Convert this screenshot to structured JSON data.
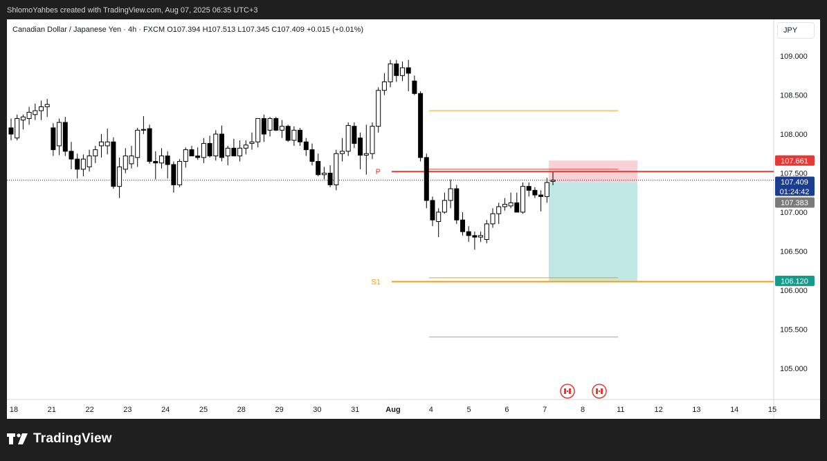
{
  "header": {
    "attribution": "ShlomoYahbes created with TradingView.com, Aug 07, 2025 06:35 UTC+3"
  },
  "legend": {
    "symbol": "Canadian Dollar / Japanese Yen · 4h · FXCM",
    "open": "O107.394",
    "high": "H107.513",
    "low": "L107.345",
    "close": "C107.409",
    "change": "+0.015 (+0.01%)"
  },
  "currency_button": "JPY",
  "brand": {
    "name": "TradingView"
  },
  "chart_data": {
    "type": "candlestick",
    "title": "Canadian Dollar / Japanese Yen · 4h · FXCM",
    "ylim": [
      104.6,
      109.47
    ],
    "y_ticks": [
      "109.000",
      "108.500",
      "108.000",
      "107.500",
      "107.000",
      "106.500",
      "106.000",
      "105.500",
      "105.000"
    ],
    "x_ticks": [
      "18",
      "21",
      "22",
      "23",
      "24",
      "25",
      "28",
      "29",
      "30",
      "31",
      "Aug",
      "4",
      "5",
      "6",
      "7",
      "8",
      "11",
      "12",
      "13",
      "14",
      "15"
    ],
    "colors": {
      "up_candle": "#ffffff",
      "down_candle": "#000000",
      "pivot_line": "#e53935",
      "support_line": "#f39c12",
      "stop_zone": "#f8c9cc",
      "target_zone": "#b9e4e0",
      "current_price_badge": "#1b3d8f",
      "entry_badge": "#7a7a7a",
      "target_badge": "#169a89",
      "stop_badge": "#e53935"
    },
    "candles": [
      {
        "o": 108.08,
        "h": 108.2,
        "l": 107.92,
        "c": 108.0
      },
      {
        "o": 107.95,
        "h": 108.25,
        "l": 107.92,
        "c": 108.2
      },
      {
        "o": 108.18,
        "h": 108.25,
        "l": 108.06,
        "c": 108.22
      },
      {
        "o": 108.2,
        "h": 108.35,
        "l": 108.12,
        "c": 108.28
      },
      {
        "o": 108.25,
        "h": 108.39,
        "l": 108.18,
        "c": 108.3
      },
      {
        "o": 108.3,
        "h": 108.43,
        "l": 108.18,
        "c": 108.35
      },
      {
        "o": 108.35,
        "h": 108.45,
        "l": 108.22,
        "c": 108.38
      },
      {
        "o": 108.08,
        "h": 108.14,
        "l": 107.72,
        "c": 107.8
      },
      {
        "o": 107.85,
        "h": 108.2,
        "l": 107.73,
        "c": 108.15
      },
      {
        "o": 108.15,
        "h": 108.22,
        "l": 107.72,
        "c": 107.78
      },
      {
        "o": 107.78,
        "h": 107.9,
        "l": 107.55,
        "c": 107.68
      },
      {
        "o": 107.68,
        "h": 107.75,
        "l": 107.43,
        "c": 107.55
      },
      {
        "o": 107.55,
        "h": 107.74,
        "l": 107.46,
        "c": 107.68
      },
      {
        "o": 107.58,
        "h": 107.8,
        "l": 107.52,
        "c": 107.72
      },
      {
        "o": 107.72,
        "h": 107.85,
        "l": 107.63,
        "c": 107.8
      },
      {
        "o": 107.85,
        "h": 108.0,
        "l": 107.7,
        "c": 107.9
      },
      {
        "o": 107.85,
        "h": 108.07,
        "l": 107.74,
        "c": 107.9
      },
      {
        "o": 107.9,
        "h": 107.96,
        "l": 107.3,
        "c": 107.33
      },
      {
        "o": 107.33,
        "h": 107.7,
        "l": 107.18,
        "c": 107.58
      },
      {
        "o": 107.55,
        "h": 107.82,
        "l": 107.5,
        "c": 107.72
      },
      {
        "o": 107.62,
        "h": 107.85,
        "l": 107.56,
        "c": 107.72
      },
      {
        "o": 107.7,
        "h": 108.08,
        "l": 107.58,
        "c": 108.05
      },
      {
        "o": 108.05,
        "h": 108.23,
        "l": 108.0,
        "c": 108.06
      },
      {
        "o": 108.07,
        "h": 108.12,
        "l": 107.62,
        "c": 107.65
      },
      {
        "o": 107.65,
        "h": 107.78,
        "l": 107.42,
        "c": 107.63
      },
      {
        "o": 107.63,
        "h": 107.82,
        "l": 107.56,
        "c": 107.72
      },
      {
        "o": 107.72,
        "h": 107.78,
        "l": 107.43,
        "c": 107.61
      },
      {
        "o": 107.61,
        "h": 107.65,
        "l": 107.25,
        "c": 107.35
      },
      {
        "o": 107.35,
        "h": 107.68,
        "l": 107.32,
        "c": 107.65
      },
      {
        "o": 107.65,
        "h": 107.83,
        "l": 107.57,
        "c": 107.8
      },
      {
        "o": 107.8,
        "h": 107.85,
        "l": 107.72,
        "c": 107.72
      },
      {
        "o": 107.72,
        "h": 107.83,
        "l": 107.67,
        "c": 107.7
      },
      {
        "o": 107.7,
        "h": 107.95,
        "l": 107.63,
        "c": 107.88
      },
      {
        "o": 107.88,
        "h": 107.98,
        "l": 107.7,
        "c": 107.72
      },
      {
        "o": 107.72,
        "h": 108.05,
        "l": 107.66,
        "c": 108.0
      },
      {
        "o": 108.0,
        "h": 108.11,
        "l": 107.65,
        "c": 107.7
      },
      {
        "o": 107.72,
        "h": 107.85,
        "l": 107.6,
        "c": 107.82
      },
      {
        "o": 107.82,
        "h": 107.94,
        "l": 107.72,
        "c": 107.72
      },
      {
        "o": 107.72,
        "h": 107.92,
        "l": 107.65,
        "c": 107.82
      },
      {
        "o": 107.82,
        "h": 107.92,
        "l": 107.74,
        "c": 107.86
      },
      {
        "o": 107.88,
        "h": 108.02,
        "l": 107.8,
        "c": 107.9
      },
      {
        "o": 107.9,
        "h": 108.2,
        "l": 107.83,
        "c": 108.2
      },
      {
        "o": 108.2,
        "h": 108.25,
        "l": 107.9,
        "c": 108.0
      },
      {
        "o": 108.05,
        "h": 108.22,
        "l": 107.97,
        "c": 108.2
      },
      {
        "o": 108.2,
        "h": 108.22,
        "l": 108.04,
        "c": 108.05
      },
      {
        "o": 108.05,
        "h": 108.18,
        "l": 107.95,
        "c": 108.1
      },
      {
        "o": 108.1,
        "h": 108.12,
        "l": 107.9,
        "c": 107.92
      },
      {
        "o": 107.92,
        "h": 108.1,
        "l": 107.85,
        "c": 108.05
      },
      {
        "o": 108.05,
        "h": 108.08,
        "l": 107.85,
        "c": 107.9
      },
      {
        "o": 107.9,
        "h": 107.95,
        "l": 107.72,
        "c": 107.8
      },
      {
        "o": 107.8,
        "h": 107.88,
        "l": 107.6,
        "c": 107.65
      },
      {
        "o": 107.65,
        "h": 107.75,
        "l": 107.46,
        "c": 107.48
      },
      {
        "o": 107.48,
        "h": 107.58,
        "l": 107.42,
        "c": 107.5
      },
      {
        "o": 107.5,
        "h": 107.6,
        "l": 107.32,
        "c": 107.35
      },
      {
        "o": 107.35,
        "h": 107.8,
        "l": 107.28,
        "c": 107.75
      },
      {
        "o": 107.75,
        "h": 107.95,
        "l": 107.65,
        "c": 107.78
      },
      {
        "o": 107.78,
        "h": 108.15,
        "l": 107.72,
        "c": 108.11
      },
      {
        "o": 108.1,
        "h": 108.15,
        "l": 107.82,
        "c": 107.88
      },
      {
        "o": 107.95,
        "h": 108.02,
        "l": 107.55,
        "c": 107.73
      },
      {
        "o": 107.73,
        "h": 108.12,
        "l": 107.48,
        "c": 107.75
      },
      {
        "o": 107.75,
        "h": 108.15,
        "l": 107.68,
        "c": 108.1
      },
      {
        "o": 108.1,
        "h": 108.6,
        "l": 108.02,
        "c": 108.56
      },
      {
        "o": 108.56,
        "h": 108.78,
        "l": 108.5,
        "c": 108.67
      },
      {
        "o": 108.67,
        "h": 108.95,
        "l": 108.6,
        "c": 108.9
      },
      {
        "o": 108.9,
        "h": 108.95,
        "l": 108.67,
        "c": 108.75
      },
      {
        "o": 108.75,
        "h": 108.93,
        "l": 108.68,
        "c": 108.85
      },
      {
        "o": 108.85,
        "h": 108.95,
        "l": 108.55,
        "c": 108.78
      },
      {
        "o": 108.68,
        "h": 108.75,
        "l": 108.5,
        "c": 108.52
      },
      {
        "o": 108.52,
        "h": 108.55,
        "l": 107.65,
        "c": 107.7
      },
      {
        "o": 107.7,
        "h": 107.75,
        "l": 107.05,
        "c": 107.15
      },
      {
        "o": 107.15,
        "h": 107.2,
        "l": 106.82,
        "c": 106.9
      },
      {
        "o": 106.88,
        "h": 107.05,
        "l": 106.68,
        "c": 107.0
      },
      {
        "o": 107.0,
        "h": 107.25,
        "l": 106.98,
        "c": 107.15
      },
      {
        "o": 107.15,
        "h": 107.42,
        "l": 107.05,
        "c": 107.3
      },
      {
        "o": 107.3,
        "h": 107.35,
        "l": 106.85,
        "c": 106.9
      },
      {
        "o": 106.9,
        "h": 107.0,
        "l": 106.7,
        "c": 106.75
      },
      {
        "o": 106.75,
        "h": 106.82,
        "l": 106.62,
        "c": 106.7
      },
      {
        "o": 106.7,
        "h": 106.75,
        "l": 106.52,
        "c": 106.68
      },
      {
        "o": 106.68,
        "h": 106.75,
        "l": 106.62,
        "c": 106.7
      },
      {
        "o": 106.65,
        "h": 106.9,
        "l": 106.6,
        "c": 106.85
      },
      {
        "o": 106.85,
        "h": 107.05,
        "l": 106.8,
        "c": 106.98
      },
      {
        "o": 106.98,
        "h": 107.12,
        "l": 106.85,
        "c": 107.07
      },
      {
        "o": 107.07,
        "h": 107.18,
        "l": 107.02,
        "c": 107.1
      },
      {
        "o": 107.08,
        "h": 107.25,
        "l": 107.05,
        "c": 107.12
      },
      {
        "o": 107.12,
        "h": 107.25,
        "l": 107.02,
        "c": 107.0
      },
      {
        "o": 107.0,
        "h": 107.38,
        "l": 106.98,
        "c": 107.33
      },
      {
        "o": 107.33,
        "h": 107.38,
        "l": 107.2,
        "c": 107.28
      },
      {
        "o": 107.28,
        "h": 107.32,
        "l": 107.18,
        "c": 107.22
      },
      {
        "o": 107.22,
        "h": 107.28,
        "l": 107.01,
        "c": 107.2
      },
      {
        "o": 107.2,
        "h": 107.44,
        "l": 107.12,
        "c": 107.38
      },
      {
        "o": 107.394,
        "h": 107.513,
        "l": 107.345,
        "c": 107.409
      }
    ],
    "pivot_levels": [
      {
        "label": "P",
        "value": 107.52
      },
      {
        "label": "S1",
        "value": 106.11
      }
    ],
    "short_position": {
      "entry": 107.383,
      "stop": 107.661,
      "target": 106.12
    },
    "current_price": "107.409",
    "countdown": "01:24:42",
    "price_badges": {
      "stop": "107.661",
      "entry": "107.383",
      "target": "106.120"
    },
    "drawn_levels": [
      108.3,
      107.55,
      106.16,
      105.4
    ],
    "event_markers": [
      "CA",
      "CA"
    ]
  }
}
